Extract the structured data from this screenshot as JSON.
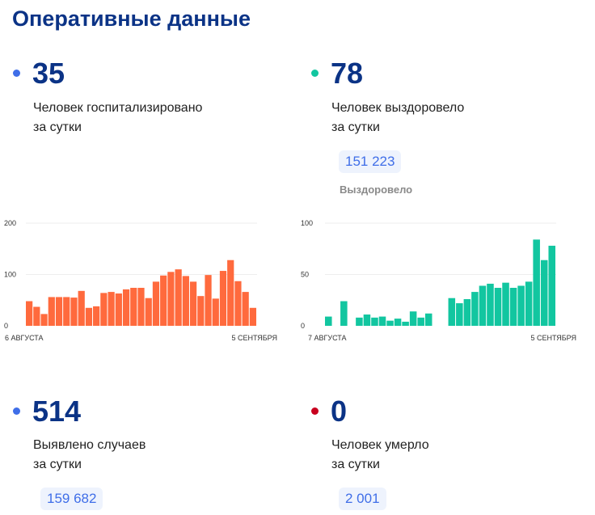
{
  "title": "Оперативные данные",
  "stats": {
    "hospitalized": {
      "value": "35",
      "label1": "Человек госпитализировано",
      "label2": "за сутки",
      "color": "#3f6ee8"
    },
    "recovered": {
      "value": "78",
      "label1": "Человек выздоровело",
      "label2": "за сутки",
      "total": "151 223",
      "total_label": "Выздоровело",
      "color": "#12c6a0"
    },
    "cases": {
      "value": "514",
      "label1": "Выявлено случаев",
      "label2": "за сутки",
      "total": "159 682",
      "color": "#3f6ee8"
    },
    "deaths": {
      "value": "0",
      "label1": "Человек умерло",
      "label2": "за сутки",
      "total": "2 001",
      "color": "#c8001e"
    }
  },
  "chart_data": [
    {
      "type": "bar",
      "color": "#ff6a3d",
      "ylim": [
        0,
        200
      ],
      "yticks": [
        "0",
        "100",
        "200"
      ],
      "grid": true,
      "x_start_label": "6 АВГУСТА",
      "x_end_label": "5 СЕНТЯБРЯ",
      "values": [
        48,
        37,
        23,
        56,
        56,
        56,
        55,
        68,
        35,
        38,
        64,
        66,
        63,
        71,
        74,
        74,
        54,
        86,
        98,
        105,
        110,
        97,
        86,
        58,
        99,
        53,
        107,
        128,
        87,
        66,
        35
      ]
    },
    {
      "type": "bar",
      "color": "#12c6a0",
      "ylim": [
        0,
        100
      ],
      "yticks": [
        "0",
        "50",
        "100"
      ],
      "grid": true,
      "x_start_label": "7 АВГУСТА",
      "x_end_label": "5 СЕНТЯБРЯ",
      "values": [
        9,
        null,
        24,
        null,
        8,
        11,
        8,
        9,
        5,
        7,
        4,
        14,
        8,
        12,
        null,
        null,
        27,
        22,
        26,
        33,
        39,
        41,
        37,
        42,
        37,
        39,
        43,
        84,
        64,
        78
      ]
    }
  ]
}
